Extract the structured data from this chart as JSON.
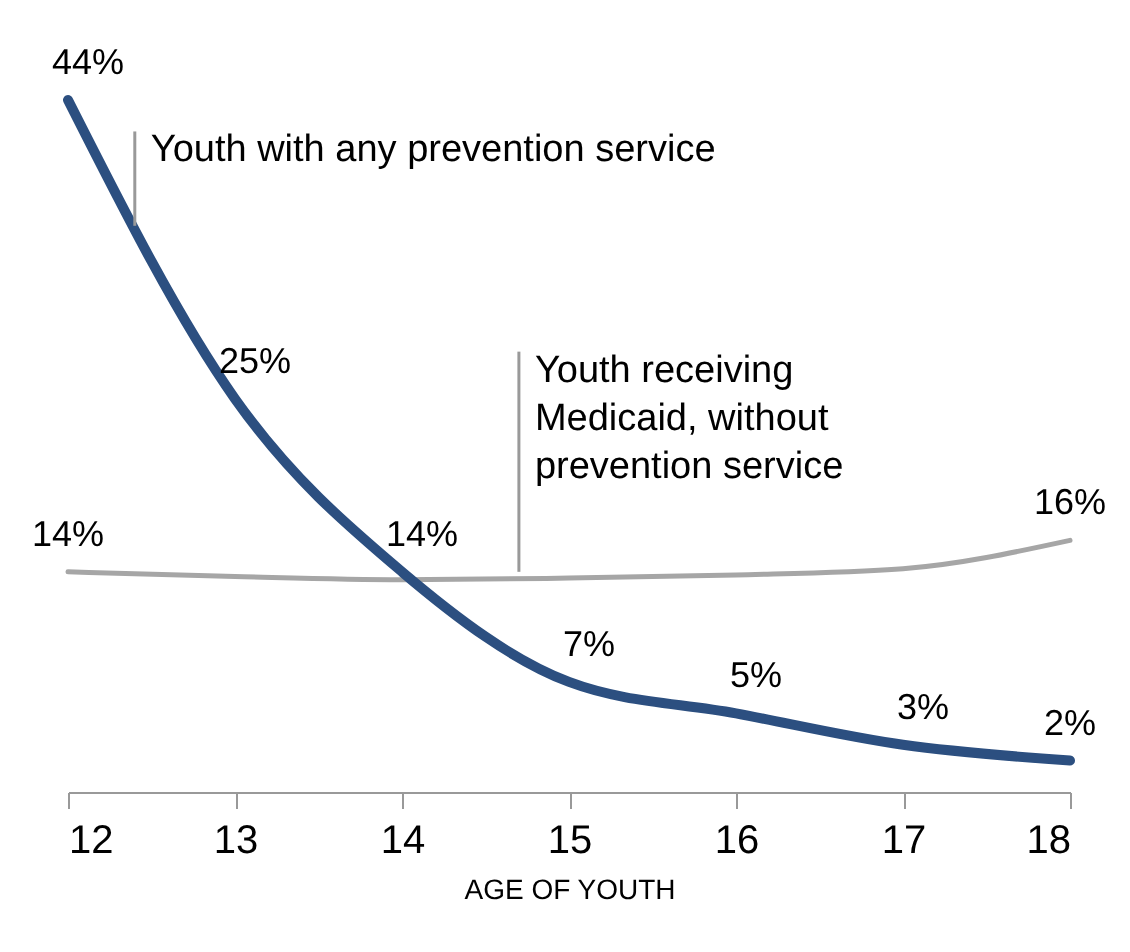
{
  "chart_data": {
    "type": "line",
    "xlabel": "AGE OF YOUTH",
    "x": [
      12,
      13,
      14,
      15,
      16,
      17,
      18
    ],
    "xlim": [
      12,
      18
    ],
    "xticks": [
      12,
      13,
      14,
      15,
      16,
      17,
      18
    ],
    "tick_labels": "x",
    "grid": false,
    "marker": "none",
    "line_style": "solid",
    "series": [
      {
        "color": "#a6a6a6",
        "values": [
          14,
          13.7,
          13.5,
          13.6,
          13.8,
          14.2,
          16
        ],
        "value_labels": [
          "14%",
          null,
          null,
          null,
          null,
          null,
          "16%"
        ]
      },
      {
        "color": "#2c4f80",
        "values": [
          44,
          25,
          14,
          7,
          5,
          3,
          2
        ],
        "value_labels": [
          "44%",
          "25%",
          "14%",
          "7%",
          "5%",
          "3%",
          "2%"
        ]
      }
    ],
    "annotations": [
      {
        "text": "Youth with any prevention service",
        "x": 12.4,
        "y": 36
      },
      {
        "text": "Youth receiving\nMedicaid, without\nprevention service",
        "x": 14.7,
        "y": 14
      }
    ]
  }
}
